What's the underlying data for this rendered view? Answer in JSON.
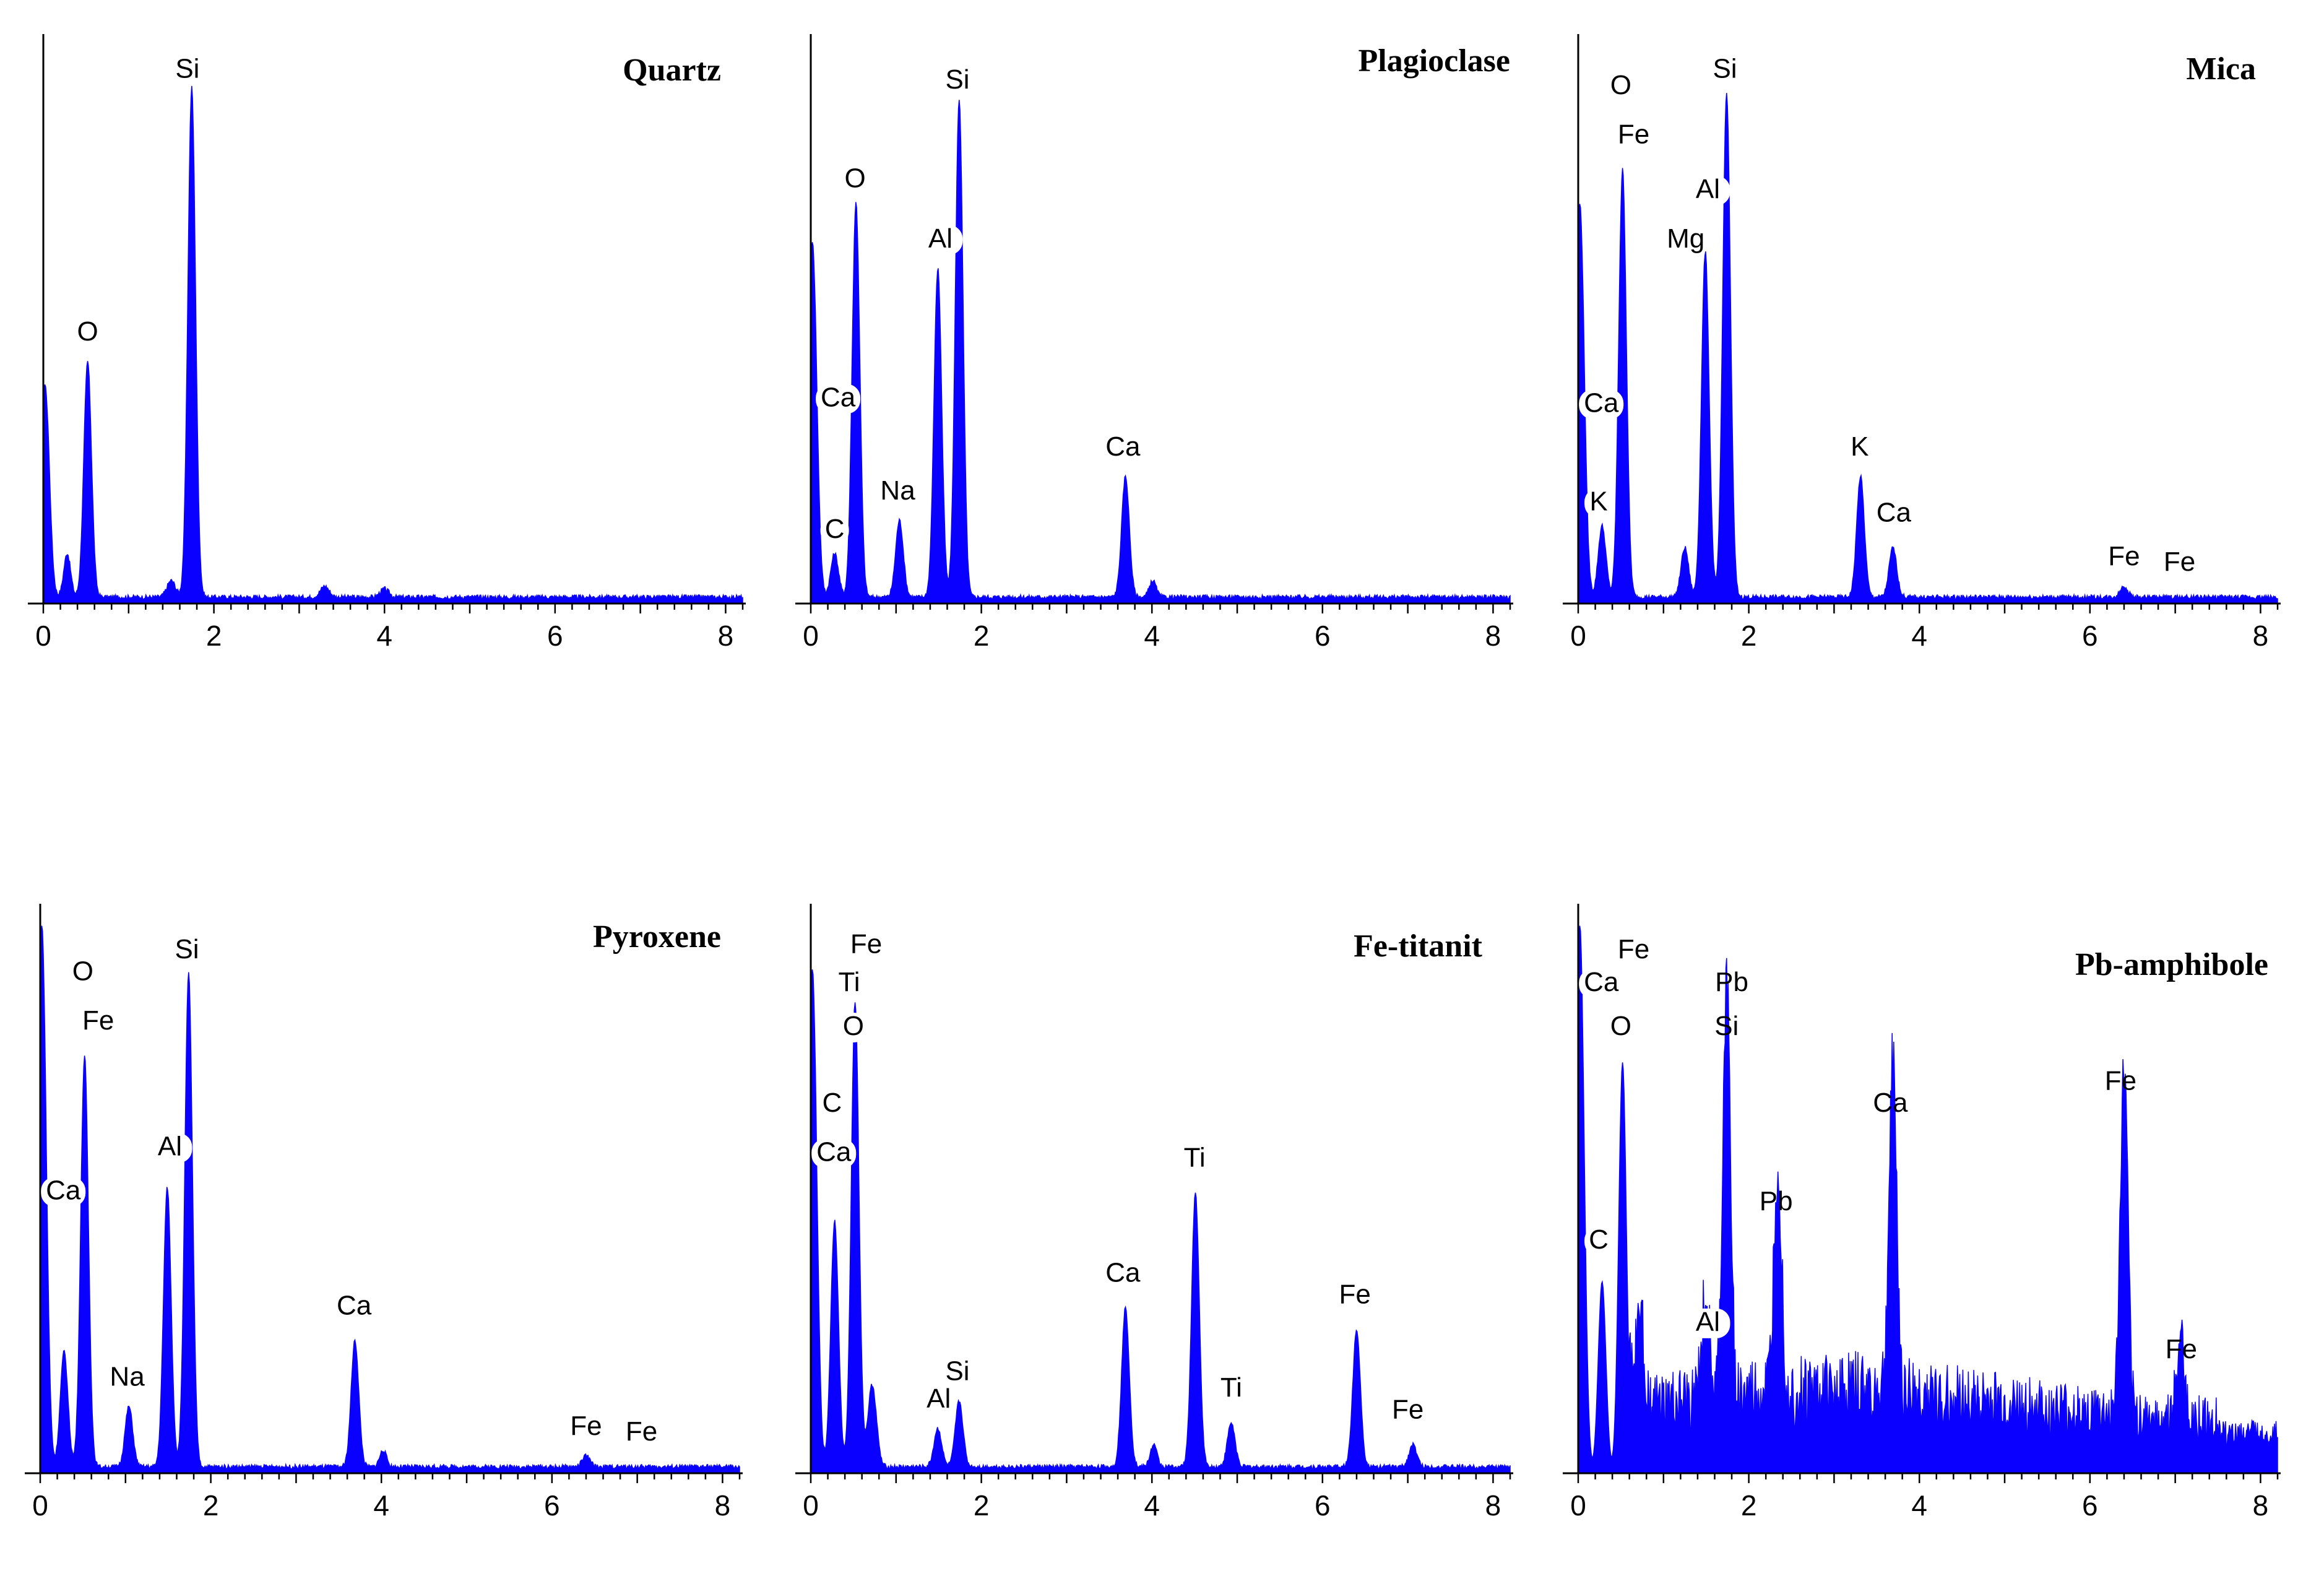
{
  "colors": {
    "spectrum": "#0a00ff",
    "axis": "#000000",
    "background": "#ffffff"
  },
  "chart_data": [
    {
      "type": "area",
      "title": "Quartz",
      "xticks": [
        "0",
        "2",
        "4",
        "6",
        "8"
      ],
      "xlim": [
        0,
        8.2
      ],
      "ylim": [
        0,
        100
      ],
      "peaks": [
        {
          "element": "O",
          "x": 0.52,
          "y": 43
        },
        {
          "element": "Si",
          "x": 1.74,
          "y": 93
        }
      ],
      "extra_peaks": [
        {
          "x": 0.02,
          "y": 40,
          "w": 0.05
        },
        {
          "x": 0.28,
          "y": 8,
          "w": 0.04
        },
        {
          "x": 1.5,
          "y": 3,
          "w": 0.05
        },
        {
          "x": 3.3,
          "y": 2,
          "w": 0.05
        },
        {
          "x": 4.0,
          "y": 1.5,
          "w": 0.05
        }
      ],
      "labels": [
        {
          "text": "O",
          "x": 0.52,
          "y": 48,
          "boxed": false
        },
        {
          "text": "Si",
          "x": 1.69,
          "y": 96,
          "boxed": false
        }
      ]
    },
    {
      "type": "area",
      "title": "Plagioclase",
      "xticks": [
        "0",
        "2",
        "4",
        "6",
        "8"
      ],
      "xlim": [
        0,
        8.2
      ],
      "ylim": [
        0,
        100
      ],
      "peaks": [
        {
          "element": "C",
          "x": 0.28,
          "y": 8
        },
        {
          "element": "O",
          "x": 0.53,
          "y": 72
        },
        {
          "element": "Na",
          "x": 1.04,
          "y": 14
        },
        {
          "element": "Al",
          "x": 1.49,
          "y": 60
        },
        {
          "element": "Si",
          "x": 1.74,
          "y": 91
        },
        {
          "element": "Ca",
          "x": 3.69,
          "y": 22
        }
      ],
      "extra_peaks": [
        {
          "x": 0.02,
          "y": 66,
          "w": 0.05
        },
        {
          "x": 4.01,
          "y": 3,
          "w": 0.04
        }
      ],
      "labels": [
        {
          "text": "Si",
          "x": 1.72,
          "y": 94,
          "boxed": false
        },
        {
          "text": "O",
          "x": 0.52,
          "y": 76,
          "boxed": false
        },
        {
          "text": "Al",
          "x": 1.52,
          "y": 65,
          "boxed": true
        },
        {
          "text": "Ca",
          "x": 0.32,
          "y": 36,
          "boxed": true
        },
        {
          "text": "Na",
          "x": 1.02,
          "y": 19,
          "boxed": false
        },
        {
          "text": "C",
          "x": 0.28,
          "y": 12,
          "boxed": true
        },
        {
          "text": "Ca",
          "x": 3.66,
          "y": 27,
          "boxed": false
        }
      ]
    },
    {
      "type": "area",
      "title": "Mica",
      "xticks": [
        "0",
        "2",
        "4",
        "6",
        "8"
      ],
      "xlim": [
        0,
        8.2
      ],
      "ylim": [
        0,
        100
      ],
      "peaks": [
        {
          "element": "K",
          "x": 0.28,
          "y": 13
        },
        {
          "element": "O",
          "x": 0.52,
          "y": 78
        },
        {
          "element": "Mg",
          "x": 1.25,
          "y": 9
        },
        {
          "element": "Al",
          "x": 1.49,
          "y": 63
        },
        {
          "element": "Si",
          "x": 1.74,
          "y": 92
        },
        {
          "element": "K",
          "x": 3.31,
          "y": 22
        },
        {
          "element": "Ca",
          "x": 3.69,
          "y": 9
        },
        {
          "element": "Fe",
          "x": 6.4,
          "y": 2
        }
      ],
      "extra_peaks": [
        {
          "x": 0.02,
          "y": 73,
          "w": 0.05
        }
      ],
      "labels": [
        {
          "text": "O",
          "x": 0.5,
          "y": 93,
          "boxed": false
        },
        {
          "text": "Si",
          "x": 1.72,
          "y": 96,
          "boxed": false
        },
        {
          "text": "Fe",
          "x": 0.65,
          "y": 84,
          "boxed": false
        },
        {
          "text": "Al",
          "x": 1.52,
          "y": 74,
          "boxed": true
        },
        {
          "text": "Mg",
          "x": 1.26,
          "y": 65,
          "boxed": false
        },
        {
          "text": "Ca",
          "x": 0.27,
          "y": 35,
          "boxed": true
        },
        {
          "text": "K",
          "x": 0.24,
          "y": 17,
          "boxed": true
        },
        {
          "text": "K",
          "x": 3.3,
          "y": 27,
          "boxed": false
        },
        {
          "text": "Ca",
          "x": 3.7,
          "y": 15,
          "boxed": false
        },
        {
          "text": "Fe",
          "x": 6.4,
          "y": 7,
          "boxed": false
        },
        {
          "text": "Fe",
          "x": 7.05,
          "y": 6,
          "boxed": false
        }
      ]
    },
    {
      "type": "area",
      "title": "Pyroxene",
      "xticks": [
        "0",
        "2",
        "4",
        "6",
        "8"
      ],
      "xlim": [
        0,
        8.2
      ],
      "ylim": [
        0,
        100
      ],
      "peaks": [
        {
          "element": "Ca",
          "x": 0.28,
          "y": 21
        },
        {
          "element": "O",
          "x": 0.52,
          "y": 75
        },
        {
          "element": "Na",
          "x": 1.04,
          "y": 11
        },
        {
          "element": "Al",
          "x": 1.49,
          "y": 51
        },
        {
          "element": "Si",
          "x": 1.74,
          "y": 90
        },
        {
          "element": "Ca",
          "x": 3.69,
          "y": 23
        },
        {
          "element": "Fe",
          "x": 6.4,
          "y": 2
        }
      ],
      "extra_peaks": [
        {
          "x": 0.02,
          "y": 100,
          "w": 0.05
        },
        {
          "x": 4.02,
          "y": 3,
          "w": 0.04
        }
      ],
      "labels": [
        {
          "text": "Si",
          "x": 1.72,
          "y": 94,
          "boxed": false
        },
        {
          "text": "O",
          "x": 0.5,
          "y": 90,
          "boxed": false
        },
        {
          "text": "Fe",
          "x": 0.68,
          "y": 81,
          "boxed": false
        },
        {
          "text": "Al",
          "x": 1.52,
          "y": 58,
          "boxed": true
        },
        {
          "text": "Ca",
          "x": 0.27,
          "y": 50,
          "boxed": true
        },
        {
          "text": "Na",
          "x": 1.02,
          "y": 16,
          "boxed": false
        },
        {
          "text": "Ca",
          "x": 3.68,
          "y": 29,
          "boxed": false
        },
        {
          "text": "Fe",
          "x": 6.4,
          "y": 7,
          "boxed": false
        },
        {
          "text": "Fe",
          "x": 7.05,
          "y": 6,
          "boxed": false
        }
      ]
    },
    {
      "type": "area",
      "title": "Fe-titanit",
      "xticks": [
        "0",
        "2",
        "4",
        "6",
        "8"
      ],
      "xlim": [
        0,
        8.2
      ],
      "ylim": [
        0,
        100
      ],
      "peaks": [
        {
          "element": "C",
          "x": 0.28,
          "y": 45
        },
        {
          "element": "O",
          "x": 0.52,
          "y": 85
        },
        {
          "element": "Al",
          "x": 1.49,
          "y": 7
        },
        {
          "element": "Si",
          "x": 1.74,
          "y": 12
        },
        {
          "element": "Ca",
          "x": 3.69,
          "y": 29
        },
        {
          "element": "Ti",
          "x": 4.51,
          "y": 50
        },
        {
          "element": "Ti",
          "x": 4.93,
          "y": 8
        },
        {
          "element": "Fe",
          "x": 6.4,
          "y": 25
        },
        {
          "element": "Fe",
          "x": 7.06,
          "y": 4
        }
      ],
      "extra_peaks": [
        {
          "x": 0.02,
          "y": 92,
          "w": 0.05
        },
        {
          "x": 0.72,
          "y": 15,
          "w": 0.05
        },
        {
          "x": 4.02,
          "y": 4,
          "w": 0.04
        }
      ],
      "labels": [
        {
          "text": "Fe",
          "x": 0.65,
          "y": 95,
          "boxed": false
        },
        {
          "text": "Ti",
          "x": 0.45,
          "y": 88,
          "boxed": true
        },
        {
          "text": "O",
          "x": 0.5,
          "y": 80,
          "boxed": true
        },
        {
          "text": "C",
          "x": 0.25,
          "y": 66,
          "boxed": true
        },
        {
          "text": "Ca",
          "x": 0.27,
          "y": 57,
          "boxed": true
        },
        {
          "text": "Si",
          "x": 1.72,
          "y": 17,
          "boxed": false
        },
        {
          "text": "Al",
          "x": 1.5,
          "y": 12,
          "boxed": false
        },
        {
          "text": "Ca",
          "x": 3.66,
          "y": 35,
          "boxed": false
        },
        {
          "text": "Ti",
          "x": 4.5,
          "y": 56,
          "boxed": false
        },
        {
          "text": "Ti",
          "x": 4.93,
          "y": 14,
          "boxed": false
        },
        {
          "text": "Fe",
          "x": 6.38,
          "y": 31,
          "boxed": false
        },
        {
          "text": "Fe",
          "x": 7.0,
          "y": 10,
          "boxed": false
        }
      ]
    },
    {
      "type": "area",
      "title": "Pb-amphibole",
      "xticks": [
        "0",
        "2",
        "4",
        "6",
        "8"
      ],
      "xlim": [
        0,
        8.2
      ],
      "ylim": [
        0,
        100
      ],
      "peaks": [
        {
          "element": "C",
          "x": 0.28,
          "y": 35
        },
        {
          "element": "O",
          "x": 0.52,
          "y": 75
        },
        {
          "element": "Al",
          "x": 1.49,
          "y": 20
        },
        {
          "element": "Si",
          "x": 1.74,
          "y": 75
        },
        {
          "element": "Pb",
          "x": 2.34,
          "y": 43
        },
        {
          "element": "Ca",
          "x": 3.69,
          "y": 60
        },
        {
          "element": "Fe",
          "x": 6.4,
          "y": 63
        },
        {
          "element": "Fe",
          "x": 7.06,
          "y": 15
        }
      ],
      "extra_peaks": [
        {
          "x": 0.02,
          "y": 100,
          "w": 0.05
        },
        {
          "x": 0.72,
          "y": 18,
          "w": 0.05
        }
      ],
      "labels": [
        {
          "text": "Fe",
          "x": 0.65,
          "y": 94,
          "boxed": false
        },
        {
          "text": "Ca",
          "x": 0.27,
          "y": 88,
          "boxed": true
        },
        {
          "text": "Pb",
          "x": 1.8,
          "y": 88,
          "boxed": false
        },
        {
          "text": "O",
          "x": 0.5,
          "y": 80,
          "boxed": true
        },
        {
          "text": "Si",
          "x": 1.74,
          "y": 80,
          "boxed": false
        },
        {
          "text": "Pb",
          "x": 2.32,
          "y": 48,
          "boxed": false
        },
        {
          "text": "C",
          "x": 0.24,
          "y": 41,
          "boxed": true
        },
        {
          "text": "Al",
          "x": 1.52,
          "y": 26,
          "boxed": true
        },
        {
          "text": "Ca",
          "x": 3.66,
          "y": 66,
          "boxed": false
        },
        {
          "text": "Fe",
          "x": 6.36,
          "y": 70,
          "boxed": false
        },
        {
          "text": "Fe",
          "x": 7.07,
          "y": 21,
          "boxed": false
        }
      ]
    }
  ]
}
